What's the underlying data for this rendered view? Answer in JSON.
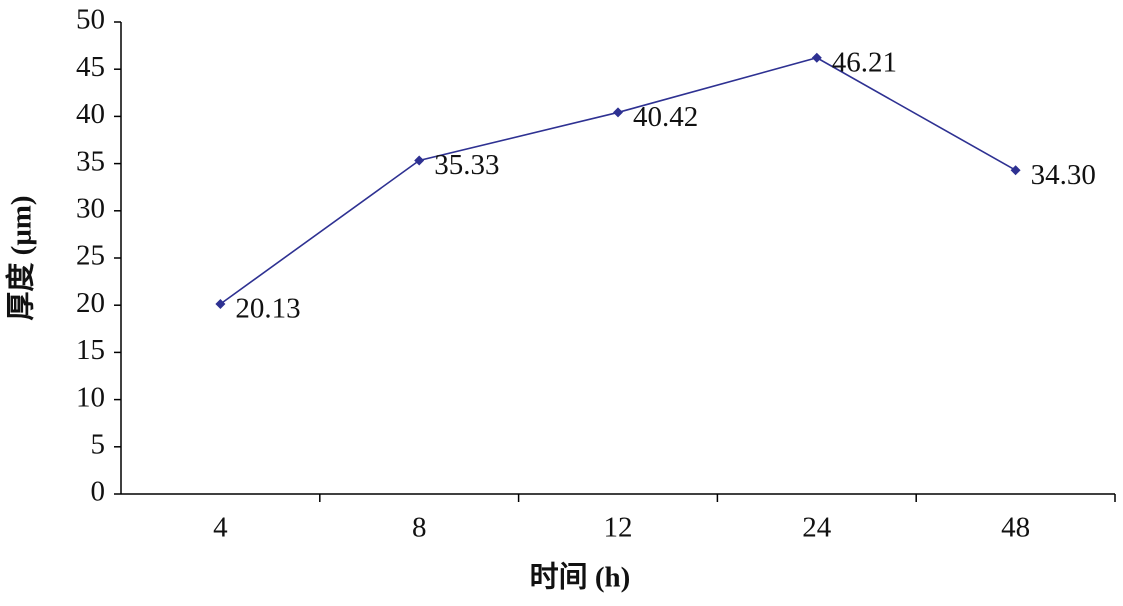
{
  "chart_data": {
    "type": "line",
    "x_label": "时间 (h)",
    "y_label": "厚度 (μm)",
    "categories": [
      "4",
      "8",
      "12",
      "24",
      "48"
    ],
    "values": [
      20.13,
      35.33,
      40.42,
      46.21,
      34.3
    ],
    "value_labels": [
      "20.13",
      "35.33",
      "40.42",
      "46.21",
      "34.30"
    ],
    "color": "#2e3192",
    "ylim": [
      0,
      50
    ],
    "yticks": [
      0,
      5,
      10,
      15,
      20,
      25,
      30,
      35,
      40,
      45,
      50
    ]
  }
}
